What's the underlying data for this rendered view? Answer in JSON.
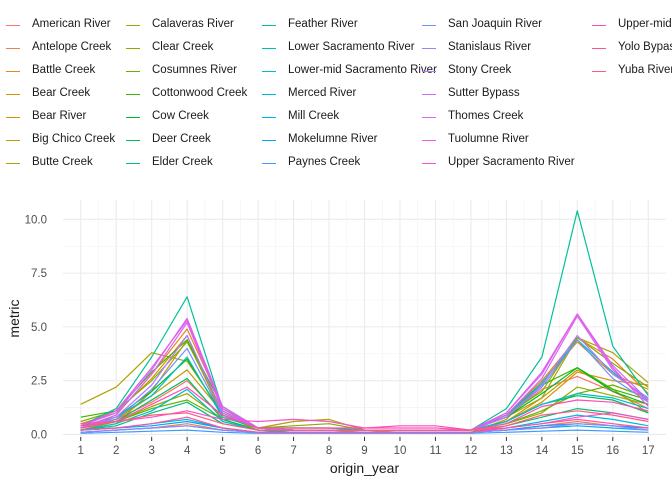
{
  "chart_data": {
    "type": "line",
    "xlabel": "origin_year",
    "ylabel": "metric",
    "x": [
      1,
      2,
      3,
      4,
      5,
      6,
      7,
      8,
      9,
      10,
      11,
      12,
      13,
      14,
      15,
      16,
      17
    ],
    "xlim": [
      0.5,
      17.5
    ],
    "ylim": [
      -0.12,
      10.9
    ],
    "y_ticks": [
      "0.0",
      "2.5",
      "5.0",
      "7.5",
      "10.0"
    ],
    "y_tick_values": [
      0,
      2.5,
      5,
      7.5,
      10
    ],
    "x_ticks": [
      "1",
      "2",
      "3",
      "4",
      "5",
      "6",
      "7",
      "8",
      "9",
      "10",
      "11",
      "12",
      "13",
      "14",
      "15",
      "16",
      "17"
    ],
    "grid": true,
    "legend_position": "top",
    "series": [
      {
        "name": "American River",
        "color": "#F8766D",
        "values": [
          0.4,
          0.7,
          1.5,
          2.5,
          0.8,
          0.3,
          0.2,
          0.2,
          0.2,
          0.2,
          0.2,
          0.2,
          0.8,
          2.1,
          2.7,
          2.0,
          1.2
        ]
      },
      {
        "name": "Antelope Creek",
        "color": "#F07E4F",
        "values": [
          0.1,
          0.2,
          0.3,
          0.5,
          0.2,
          0.1,
          0.1,
          0.1,
          0.1,
          0.1,
          0.1,
          0.1,
          0.2,
          0.4,
          0.6,
          0.4,
          0.3
        ]
      },
      {
        "name": "Battle Creek",
        "color": "#E7861B",
        "values": [
          0.3,
          0.9,
          2.8,
          4.9,
          1.3,
          0.3,
          0.2,
          0.2,
          0.2,
          0.2,
          0.2,
          0.2,
          0.9,
          2.5,
          4.5,
          3.5,
          1.9
        ]
      },
      {
        "name": "Bear Creek",
        "color": "#DB8E00",
        "values": [
          0.5,
          1.0,
          2.6,
          4.6,
          1.0,
          0.3,
          0.2,
          0.2,
          0.1,
          0.2,
          0.2,
          0.2,
          0.6,
          1.5,
          2.9,
          2.5,
          2.3
        ]
      },
      {
        "name": "Bear River",
        "color": "#CD9600",
        "values": [
          0.2,
          0.5,
          2.0,
          4.4,
          0.9,
          0.2,
          0.1,
          0.1,
          0.1,
          0.1,
          0.1,
          0.1,
          0.7,
          2.4,
          4.3,
          2.8,
          2.1
        ]
      },
      {
        "name": "Big Chico Creek",
        "color": "#BE9C00",
        "values": [
          0.3,
          0.7,
          1.8,
          3.0,
          1.0,
          0.3,
          0.2,
          0.2,
          0.2,
          0.2,
          0.2,
          0.2,
          0.6,
          1.7,
          3.0,
          2.1,
          1.0
        ]
      },
      {
        "name": "Butte Creek",
        "color": "#AEA200",
        "values": [
          1.4,
          2.2,
          3.8,
          3.4,
          1.0,
          0.3,
          0.6,
          0.7,
          0.2,
          0.2,
          0.2,
          0.2,
          0.8,
          1.7,
          4.5,
          3.8,
          2.4
        ]
      },
      {
        "name": "Calaveras River",
        "color": "#9AA800",
        "values": [
          0.2,
          0.6,
          1.3,
          1.9,
          0.7,
          0.2,
          0.2,
          0.2,
          0.2,
          0.2,
          0.2,
          0.2,
          0.5,
          1.0,
          2.2,
          1.8,
          1.4
        ]
      },
      {
        "name": "Clear Creek",
        "color": "#84AD00",
        "values": [
          0.6,
          1.1,
          2.5,
          4.3,
          1.1,
          0.3,
          0.4,
          0.5,
          0.2,
          0.2,
          0.2,
          0.2,
          0.9,
          2.0,
          4.5,
          3.3,
          2.2
        ]
      },
      {
        "name": "Cosumnes River",
        "color": "#68B100",
        "values": [
          0.3,
          0.6,
          1.2,
          1.6,
          0.7,
          0.2,
          0.2,
          0.2,
          0.2,
          0.2,
          0.2,
          0.2,
          0.5,
          1.1,
          1.9,
          2.3,
          1.7
        ]
      },
      {
        "name": "Cottonwood Creek",
        "color": "#3DB600",
        "values": [
          0.8,
          1.1,
          2.9,
          4.4,
          1.3,
          0.3,
          0.3,
          0.3,
          0.2,
          0.2,
          0.2,
          0.2,
          0.9,
          2.3,
          3.1,
          2.1,
          1.6
        ]
      },
      {
        "name": "Cow Creek",
        "color": "#00B929",
        "values": [
          0.4,
          0.8,
          2.0,
          3.5,
          0.9,
          0.3,
          0.2,
          0.2,
          0.2,
          0.2,
          0.2,
          0.2,
          0.8,
          1.9,
          3.1,
          2.0,
          1.4
        ]
      },
      {
        "name": "Deer Creek",
        "color": "#00BD5C",
        "values": [
          0.3,
          0.6,
          1.6,
          2.6,
          0.7,
          0.2,
          0.2,
          0.2,
          0.2,
          0.2,
          0.2,
          0.2,
          0.6,
          1.4,
          1.8,
          1.6,
          1.0
        ]
      },
      {
        "name": "Elder Creek",
        "color": "#00BF7D",
        "values": [
          0.2,
          0.4,
          1.0,
          1.5,
          0.5,
          0.2,
          0.1,
          0.1,
          0.1,
          0.1,
          0.1,
          0.1,
          0.4,
          0.8,
          1.2,
          1.0,
          0.7
        ]
      },
      {
        "name": "Feather River",
        "color": "#00C19A",
        "values": [
          0.4,
          1.2,
          3.6,
          6.4,
          1.2,
          0.3,
          0.2,
          0.2,
          0.2,
          0.2,
          0.2,
          0.2,
          1.2,
          3.6,
          10.4,
          4.1,
          1.8
        ]
      },
      {
        "name": "Lower Sacramento River",
        "color": "#00C0B4",
        "values": [
          0.3,
          0.8,
          1.8,
          3.6,
          0.8,
          0.3,
          0.3,
          0.3,
          0.2,
          0.2,
          0.2,
          0.2,
          0.9,
          2.4,
          4.4,
          2.9,
          1.6
        ]
      },
      {
        "name": "Lower-mid Sacramento River",
        "color": "#00BDCB",
        "values": [
          0.2,
          0.5,
          1.1,
          2.1,
          0.6,
          0.2,
          0.2,
          0.2,
          0.2,
          0.2,
          0.2,
          0.2,
          0.6,
          1.4,
          1.9,
          1.7,
          1.2
        ]
      },
      {
        "name": "Merced River",
        "color": "#00B7DE",
        "values": [
          0.2,
          0.3,
          0.5,
          0.7,
          0.3,
          0.1,
          0.1,
          0.1,
          0.1,
          0.1,
          0.1,
          0.1,
          0.3,
          0.6,
          0.9,
          0.7,
          0.4
        ]
      },
      {
        "name": "Mill Creek",
        "color": "#00AFEE",
        "values": [
          0.1,
          0.2,
          0.3,
          0.4,
          0.2,
          0.1,
          0.1,
          0.1,
          0.1,
          0.1,
          0.1,
          0.1,
          0.2,
          0.3,
          0.4,
          0.3,
          0.2
        ]
      },
      {
        "name": "Mokelumne River",
        "color": "#00A5FA",
        "values": [
          0.2,
          0.3,
          0.4,
          0.6,
          0.3,
          0.1,
          0.1,
          0.1,
          0.1,
          0.1,
          0.1,
          0.1,
          0.2,
          0.4,
          0.5,
          0.4,
          0.3
        ]
      },
      {
        "name": "Paynes Creek",
        "color": "#3E9BFF",
        "values": [
          0.05,
          0.1,
          0.15,
          0.2,
          0.1,
          0.05,
          0.05,
          0.05,
          0.05,
          0.05,
          0.05,
          0.05,
          0.1,
          0.15,
          0.2,
          0.15,
          0.1
        ]
      },
      {
        "name": "San Joaquin River",
        "color": "#6F8FFF",
        "values": [
          0.3,
          0.7,
          2.1,
          4.0,
          0.9,
          0.3,
          0.2,
          0.2,
          0.2,
          0.2,
          0.2,
          0.2,
          0.8,
          2.2,
          4.4,
          2.6,
          1.5
        ]
      },
      {
        "name": "Stanislaus River",
        "color": "#9384FF",
        "values": [
          0.1,
          0.2,
          0.3,
          0.4,
          0.2,
          0.1,
          0.1,
          0.1,
          0.1,
          0.1,
          0.1,
          0.1,
          0.2,
          0.3,
          0.5,
          0.4,
          0.2
        ]
      },
      {
        "name": "Stony Creek",
        "color": "#AF79FF",
        "values": [
          0.3,
          0.8,
          2.3,
          4.6,
          1.0,
          0.3,
          0.2,
          0.2,
          0.2,
          0.2,
          0.2,
          0.2,
          0.8,
          2.3,
          4.6,
          2.8,
          1.7
        ]
      },
      {
        "name": "Sutter Bypass",
        "color": "#C76EFF",
        "values": [
          0.4,
          1.0,
          3.0,
          5.4,
          1.3,
          0.3,
          0.2,
          0.2,
          0.2,
          0.2,
          0.2,
          0.2,
          1.0,
          2.8,
          5.6,
          3.2,
          1.6
        ]
      },
      {
        "name": "Thomes Creek",
        "color": "#DB63F6",
        "values": [
          0.3,
          0.9,
          2.8,
          5.2,
          1.1,
          0.3,
          0.2,
          0.2,
          0.2,
          0.2,
          0.2,
          0.2,
          0.9,
          2.6,
          5.5,
          3.0,
          1.5
        ]
      },
      {
        "name": "Tuolumne River",
        "color": "#EA5AE4",
        "values": [
          0.4,
          1.1,
          3.1,
          5.3,
          1.2,
          0.3,
          0.2,
          0.2,
          0.2,
          0.2,
          0.2,
          0.2,
          1.0,
          2.9,
          5.6,
          3.1,
          1.3
        ]
      },
      {
        "name": "Upper Sacramento River",
        "color": "#F552CF",
        "values": [
          0.5,
          0.6,
          0.8,
          1.1,
          0.7,
          0.6,
          0.7,
          0.6,
          0.3,
          0.3,
          0.3,
          0.2,
          0.3,
          0.5,
          0.8,
          1.0,
          0.7
        ]
      },
      {
        "name": "Upper-mid Sacramento River",
        "color": "#FC4FB6",
        "values": [
          0.3,
          0.6,
          1.4,
          2.2,
          0.9,
          0.3,
          0.3,
          0.3,
          0.3,
          0.4,
          0.4,
          0.2,
          0.5,
          1.3,
          1.6,
          1.5,
          1.1
        ]
      },
      {
        "name": "Yolo Bypass",
        "color": "#FF529B",
        "values": [
          0.2,
          0.3,
          0.5,
          0.8,
          0.3,
          0.1,
          0.1,
          0.1,
          0.1,
          0.1,
          0.1,
          0.1,
          0.3,
          0.5,
          0.7,
          0.5,
          0.3
        ]
      },
      {
        "name": "Yuba River",
        "color": "#FF5A7E",
        "values": [
          0.4,
          0.6,
          0.9,
          1.0,
          0.5,
          0.2,
          0.2,
          0.2,
          0.2,
          0.2,
          0.2,
          0.2,
          0.4,
          0.9,
          1.1,
          0.9,
          0.6
        ]
      }
    ]
  }
}
